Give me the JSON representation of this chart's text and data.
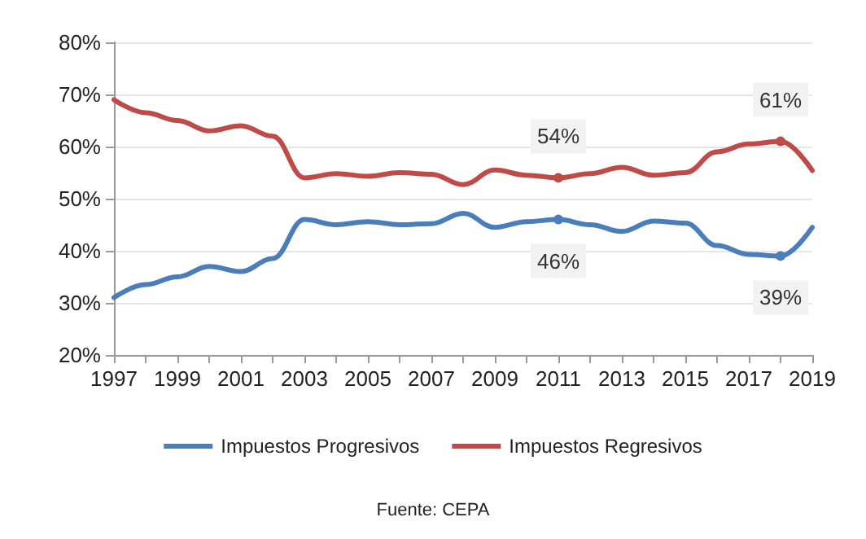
{
  "chart_data": {
    "type": "line",
    "categories": [
      "1997",
      null,
      "1999",
      null,
      "2001",
      null,
      "2003",
      null,
      "2005",
      null,
      "2007",
      null,
      "2009",
      null,
      "2011",
      null,
      "2013",
      null,
      "2015",
      null,
      "2017",
      null,
      "2019"
    ],
    "series": [
      {
        "name": "Impuestos Progresivos",
        "color": "#4a7ebb",
        "values": [
          31,
          33.5,
          35,
          37,
          36,
          38.5,
          46,
          45,
          45.6,
          45,
          45.2,
          47.2,
          44.5,
          45.6,
          46,
          45,
          43.7,
          45.7,
          45.3,
          41,
          39.3,
          39,
          44.5
        ],
        "value_labels": [
          null,
          null,
          null,
          null,
          null,
          null,
          null,
          null,
          null,
          null,
          null,
          null,
          null,
          null,
          "46%",
          null,
          null,
          null,
          null,
          null,
          null,
          "39%",
          null
        ]
      },
      {
        "name": "Impuestos Regresivos",
        "color": "#be4b48",
        "values": [
          69,
          66.5,
          65,
          63,
          64,
          62,
          54,
          54.8,
          54.3,
          55,
          54.7,
          52.7,
          55.5,
          54.5,
          54,
          54.8,
          56,
          54.5,
          55,
          59,
          60.5,
          61,
          55.4
        ],
        "value_labels": [
          null,
          null,
          null,
          null,
          null,
          null,
          null,
          null,
          null,
          null,
          null,
          null,
          null,
          null,
          "54%",
          null,
          null,
          null,
          null,
          null,
          null,
          "61%",
          null
        ]
      }
    ],
    "ylim": [
      20,
      80
    ],
    "yticks": [
      {
        "value": 20,
        "label": "20%"
      },
      {
        "value": 30,
        "label": "30%"
      },
      {
        "value": 40,
        "label": "40%"
      },
      {
        "value": 50,
        "label": "50%"
      },
      {
        "value": 60,
        "label": "60%"
      },
      {
        "value": 70,
        "label": "70%"
      },
      {
        "value": 80,
        "label": "80%"
      }
    ],
    "grid": "y",
    "legend": "bottom",
    "marker": "none",
    "line_style": "solid",
    "annotations": [
      "Fuente: CEPA"
    ]
  }
}
